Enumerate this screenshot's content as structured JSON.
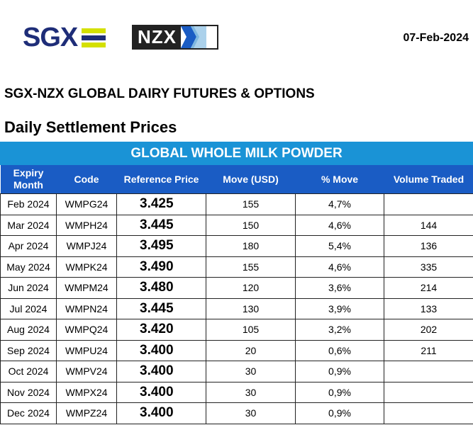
{
  "header": {
    "sgx_logo_text": "SGX",
    "nzx_logo_text": "NZX",
    "date": "07-Feb-2024",
    "title": "SGX-NZX GLOBAL DAIRY FUTURES & OPTIONS",
    "subtitle": "Daily Settlement Prices",
    "product": "GLOBAL WHOLE MILK POWDER"
  },
  "colors": {
    "sgx_navy": "#1e2d78",
    "sgx_yellow": "#d4e000",
    "band_blue": "#1a93d6",
    "header_blue": "#1a5cc4"
  },
  "table": {
    "columns": {
      "expiry_line1": "Expiry",
      "expiry_line2": "Month",
      "code": "Code",
      "reference_price": "Reference Price",
      "move": "Move (USD)",
      "pct_move": "% Move",
      "volume": "Volume Traded"
    },
    "rows": [
      {
        "month": "Feb 2024",
        "code": "WMPG24",
        "price": "3.425",
        "move": "155",
        "pct": "4,7%",
        "volume": ""
      },
      {
        "month": "Mar 2024",
        "code": "WMPH24",
        "price": "3.445",
        "move": "150",
        "pct": "4,6%",
        "volume": "144"
      },
      {
        "month": "Apr 2024",
        "code": "WMPJ24",
        "price": "3.495",
        "move": "180",
        "pct": "5,4%",
        "volume": "136"
      },
      {
        "month": "May 2024",
        "code": "WMPK24",
        "price": "3.490",
        "move": "155",
        "pct": "4,6%",
        "volume": "335"
      },
      {
        "month": "Jun 2024",
        "code": "WMPM24",
        "price": "3.480",
        "move": "120",
        "pct": "3,6%",
        "volume": "214"
      },
      {
        "month": "Jul 2024",
        "code": "WMPN24",
        "price": "3.445",
        "move": "130",
        "pct": "3,9%",
        "volume": "133"
      },
      {
        "month": "Aug 2024",
        "code": "WMPQ24",
        "price": "3.420",
        "move": "105",
        "pct": "3,2%",
        "volume": "202"
      },
      {
        "month": "Sep 2024",
        "code": "WMPU24",
        "price": "3.400",
        "move": "20",
        "pct": "0,6%",
        "volume": "211"
      },
      {
        "month": "Oct 2024",
        "code": "WMPV24",
        "price": "3.400",
        "move": "30",
        "pct": "0,9%",
        "volume": ""
      },
      {
        "month": "Nov 2024",
        "code": "WMPX24",
        "price": "3.400",
        "move": "30",
        "pct": "0,9%",
        "volume": ""
      },
      {
        "month": "Dec 2024",
        "code": "WMPZ24",
        "price": "3.400",
        "move": "30",
        "pct": "0,9%",
        "volume": ""
      }
    ]
  }
}
